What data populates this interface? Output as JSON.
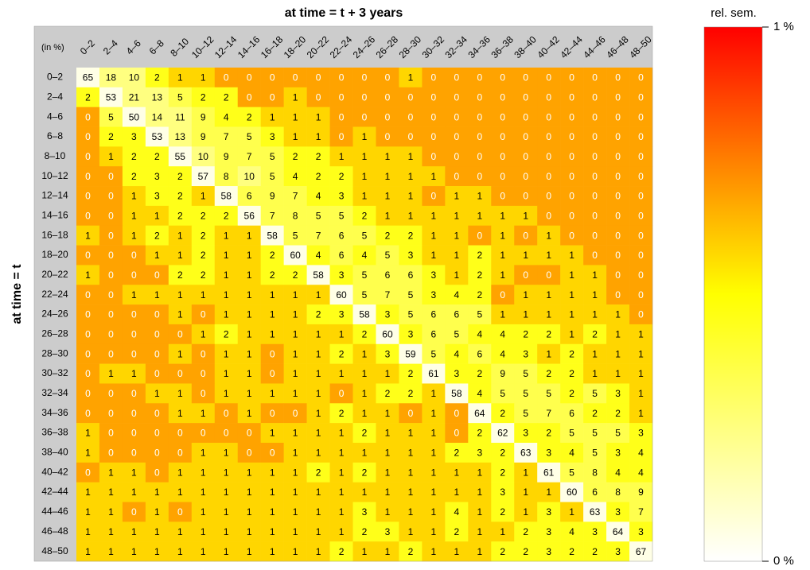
{
  "chart_data": {
    "type": "heatmap",
    "title": "at time = t + 3 years",
    "ylabel": "at time = t",
    "corner_label": "(in %)",
    "x_categories": [
      "0–2",
      "2–4",
      "4–6",
      "6–8",
      "8–10",
      "10–12",
      "12–14",
      "14–16",
      "16–18",
      "18–20",
      "20–22",
      "22–24",
      "24–26",
      "26–28",
      "28–30",
      "30–32",
      "32–34",
      "34–36",
      "36–38",
      "38–40",
      "40–42",
      "42–44",
      "44–46",
      "46–48",
      "48–50"
    ],
    "y_categories": [
      "0–2",
      "2–4",
      "4–6",
      "6–8",
      "8–10",
      "10–12",
      "12–14",
      "14–16",
      "16–18",
      "18–20",
      "20–22",
      "22–24",
      "24–26",
      "26–28",
      "28–30",
      "30–32",
      "32–34",
      "34–36",
      "36–38",
      "38–40",
      "40–42",
      "42–44",
      "44–46",
      "46–48",
      "48–50"
    ],
    "values": [
      [
        65,
        18,
        10,
        2,
        1,
        1,
        0,
        0,
        0,
        0,
        0,
        0,
        0,
        0,
        1,
        0,
        0,
        0,
        0,
        0,
        0,
        0,
        0,
        0,
        0
      ],
      [
        2,
        53,
        21,
        13,
        5,
        2,
        2,
        0,
        0,
        1,
        0,
        0,
        0,
        0,
        0,
        0,
        0,
        0,
        0,
        0,
        0,
        0,
        0,
        0,
        0
      ],
      [
        0,
        5,
        50,
        14,
        11,
        9,
        4,
        2,
        1,
        1,
        1,
        0,
        0,
        0,
        0,
        0,
        0,
        0,
        0,
        0,
        0,
        0,
        0,
        0,
        0
      ],
      [
        0,
        2,
        3,
        53,
        13,
        9,
        7,
        5,
        3,
        1,
        1,
        0,
        1,
        0,
        0,
        0,
        0,
        0,
        0,
        0,
        0,
        0,
        0,
        0,
        0
      ],
      [
        0,
        1,
        2,
        2,
        55,
        10,
        9,
        7,
        5,
        2,
        2,
        1,
        1,
        1,
        1,
        0,
        0,
        0,
        0,
        0,
        0,
        0,
        0,
        0,
        0
      ],
      [
        0,
        0,
        2,
        3,
        2,
        57,
        8,
        10,
        5,
        4,
        2,
        2,
        1,
        1,
        1,
        1,
        0,
        0,
        0,
        0,
        0,
        0,
        0,
        0,
        0
      ],
      [
        0,
        0,
        1,
        3,
        2,
        1,
        58,
        6,
        9,
        7,
        4,
        3,
        1,
        1,
        1,
        0,
        1,
        1,
        0,
        0,
        0,
        0,
        0,
        0,
        0
      ],
      [
        0,
        0,
        1,
        1,
        2,
        2,
        2,
        56,
        7,
        8,
        5,
        5,
        2,
        1,
        1,
        1,
        1,
        1,
        1,
        1,
        0,
        0,
        0,
        0,
        0
      ],
      [
        1,
        0,
        1,
        2,
        1,
        2,
        1,
        1,
        58,
        5,
        7,
        6,
        5,
        2,
        2,
        1,
        1,
        0,
        1,
        0,
        1,
        0,
        0,
        0,
        0
      ],
      [
        0,
        0,
        0,
        1,
        1,
        2,
        1,
        1,
        2,
        60,
        4,
        6,
        4,
        5,
        3,
        1,
        1,
        2,
        1,
        1,
        1,
        1,
        0,
        0,
        0
      ],
      [
        1,
        0,
        0,
        0,
        2,
        2,
        1,
        1,
        2,
        2,
        58,
        3,
        5,
        6,
        6,
        3,
        1,
        2,
        1,
        0,
        0,
        1,
        1,
        0,
        0
      ],
      [
        0,
        0,
        1,
        1,
        1,
        1,
        1,
        1,
        1,
        1,
        1,
        60,
        5,
        7,
        5,
        3,
        4,
        2,
        0,
        1,
        1,
        1,
        1,
        0,
        0
      ],
      [
        0,
        0,
        0,
        0,
        1,
        0,
        1,
        1,
        1,
        1,
        2,
        3,
        58,
        3,
        5,
        6,
        6,
        5,
        1,
        1,
        1,
        1,
        1,
        1,
        0
      ],
      [
        0,
        0,
        0,
        0,
        0,
        1,
        2,
        1,
        1,
        1,
        1,
        1,
        2,
        60,
        3,
        6,
        5,
        4,
        4,
        2,
        2,
        1,
        2,
        1,
        1
      ],
      [
        0,
        0,
        0,
        0,
        1,
        0,
        1,
        1,
        0,
        1,
        1,
        2,
        1,
        3,
        59,
        5,
        4,
        6,
        4,
        3,
        1,
        2,
        1,
        1,
        1
      ],
      [
        0,
        1,
        1,
        0,
        0,
        0,
        1,
        1,
        0,
        1,
        1,
        1,
        1,
        1,
        2,
        61,
        3,
        2,
        9,
        5,
        2,
        2,
        1,
        1,
        1
      ],
      [
        0,
        0,
        0,
        1,
        1,
        0,
        1,
        1,
        1,
        1,
        1,
        0,
        1,
        2,
        2,
        1,
        58,
        4,
        5,
        5,
        5,
        2,
        5,
        3,
        1
      ],
      [
        0,
        0,
        0,
        0,
        1,
        1,
        0,
        1,
        0,
        0,
        1,
        2,
        1,
        1,
        0,
        1,
        0,
        64,
        2,
        5,
        7,
        6,
        2,
        2,
        1
      ],
      [
        1,
        0,
        0,
        0,
        0,
        0,
        0,
        0,
        1,
        1,
        1,
        1,
        2,
        1,
        1,
        1,
        0,
        2,
        62,
        3,
        2,
        5,
        5,
        5,
        3
      ],
      [
        1,
        0,
        0,
        0,
        0,
        1,
        1,
        0,
        0,
        1,
        1,
        1,
        1,
        1,
        1,
        1,
        2,
        3,
        2,
        63,
        3,
        4,
        5,
        3,
        4
      ],
      [
        0,
        1,
        1,
        0,
        1,
        1,
        1,
        1,
        1,
        1,
        2,
        1,
        2,
        1,
        1,
        1,
        1,
        1,
        2,
        1,
        61,
        5,
        8,
        4,
        4
      ],
      [
        1,
        1,
        1,
        1,
        1,
        1,
        1,
        1,
        1,
        1,
        1,
        1,
        1,
        1,
        1,
        1,
        1,
        1,
        3,
        1,
        1,
        60,
        6,
        8,
        9
      ],
      [
        1,
        1,
        0,
        1,
        0,
        1,
        1,
        1,
        1,
        1,
        1,
        1,
        3,
        1,
        1,
        1,
        4,
        1,
        2,
        1,
        3,
        1,
        63,
        3,
        7
      ],
      [
        1,
        1,
        1,
        1,
        1,
        1,
        1,
        1,
        1,
        1,
        1,
        1,
        2,
        3,
        1,
        1,
        2,
        1,
        1,
        2,
        3,
        4,
        3,
        64,
        3
      ],
      [
        1,
        1,
        1,
        1,
        1,
        1,
        1,
        1,
        1,
        1,
        1,
        2,
        1,
        1,
        2,
        1,
        1,
        1,
        2,
        2,
        3,
        2,
        2,
        3,
        67
      ]
    ],
    "sem": [
      [
        0.05,
        0.25,
        0.25,
        0.45,
        0.58,
        0.58,
        0.68,
        0.68,
        0.68,
        0.68,
        0.68,
        0.68,
        0.68,
        0.68,
        0.58,
        0.68,
        0.68,
        0.68,
        0.68,
        0.68,
        0.68,
        0.68,
        0.68,
        0.68,
        0.68
      ],
      [
        0.45,
        0.05,
        0.25,
        0.25,
        0.35,
        0.45,
        0.45,
        0.68,
        0.68,
        0.58,
        0.68,
        0.68,
        0.68,
        0.68,
        0.68,
        0.68,
        0.68,
        0.68,
        0.68,
        0.68,
        0.68,
        0.68,
        0.68,
        0.68,
        0.68
      ],
      [
        0.68,
        0.35,
        0.05,
        0.25,
        0.25,
        0.35,
        0.45,
        0.45,
        0.58,
        0.58,
        0.58,
        0.68,
        0.68,
        0.68,
        0.68,
        0.68,
        0.68,
        0.68,
        0.68,
        0.68,
        0.68,
        0.68,
        0.68,
        0.68,
        0.68
      ],
      [
        0.68,
        0.45,
        0.45,
        0.05,
        0.25,
        0.35,
        0.35,
        0.35,
        0.45,
        0.58,
        0.58,
        0.68,
        0.58,
        0.68,
        0.68,
        0.68,
        0.68,
        0.68,
        0.68,
        0.68,
        0.68,
        0.68,
        0.68,
        0.68,
        0.68
      ],
      [
        0.68,
        0.58,
        0.45,
        0.45,
        0.05,
        0.25,
        0.35,
        0.35,
        0.35,
        0.45,
        0.45,
        0.58,
        0.58,
        0.58,
        0.58,
        0.68,
        0.68,
        0.68,
        0.68,
        0.68,
        0.68,
        0.68,
        0.68,
        0.68,
        0.68
      ],
      [
        0.68,
        0.68,
        0.45,
        0.45,
        0.45,
        0.05,
        0.35,
        0.25,
        0.35,
        0.45,
        0.45,
        0.45,
        0.58,
        0.58,
        0.58,
        0.58,
        0.68,
        0.68,
        0.68,
        0.68,
        0.68,
        0.68,
        0.68,
        0.68,
        0.68
      ],
      [
        0.68,
        0.68,
        0.58,
        0.45,
        0.45,
        0.58,
        0.05,
        0.35,
        0.35,
        0.35,
        0.45,
        0.45,
        0.58,
        0.58,
        0.58,
        0.68,
        0.58,
        0.58,
        0.68,
        0.68,
        0.68,
        0.68,
        0.68,
        0.68,
        0.68
      ],
      [
        0.68,
        0.68,
        0.58,
        0.58,
        0.45,
        0.45,
        0.45,
        0.05,
        0.35,
        0.35,
        0.35,
        0.35,
        0.45,
        0.58,
        0.58,
        0.58,
        0.58,
        0.58,
        0.58,
        0.58,
        0.68,
        0.68,
        0.68,
        0.68,
        0.68
      ],
      [
        0.58,
        0.68,
        0.58,
        0.45,
        0.58,
        0.45,
        0.58,
        0.58,
        0.05,
        0.35,
        0.35,
        0.35,
        0.35,
        0.45,
        0.45,
        0.58,
        0.58,
        0.68,
        0.58,
        0.68,
        0.58,
        0.68,
        0.68,
        0.68,
        0.68
      ],
      [
        0.68,
        0.68,
        0.68,
        0.58,
        0.58,
        0.45,
        0.58,
        0.58,
        0.45,
        0.05,
        0.45,
        0.35,
        0.45,
        0.35,
        0.45,
        0.58,
        0.58,
        0.45,
        0.58,
        0.58,
        0.58,
        0.58,
        0.68,
        0.68,
        0.68
      ],
      [
        0.58,
        0.68,
        0.68,
        0.68,
        0.45,
        0.45,
        0.58,
        0.58,
        0.45,
        0.45,
        0.05,
        0.45,
        0.35,
        0.35,
        0.35,
        0.45,
        0.58,
        0.45,
        0.58,
        0.68,
        0.68,
        0.58,
        0.58,
        0.68,
        0.68
      ],
      [
        0.68,
        0.68,
        0.58,
        0.58,
        0.58,
        0.58,
        0.58,
        0.58,
        0.58,
        0.58,
        0.58,
        0.05,
        0.35,
        0.35,
        0.35,
        0.45,
        0.45,
        0.45,
        0.68,
        0.58,
        0.58,
        0.58,
        0.58,
        0.68,
        0.68
      ],
      [
        0.68,
        0.68,
        0.68,
        0.68,
        0.58,
        0.68,
        0.58,
        0.58,
        0.58,
        0.58,
        0.45,
        0.45,
        0.05,
        0.45,
        0.35,
        0.35,
        0.35,
        0.35,
        0.58,
        0.58,
        0.58,
        0.58,
        0.58,
        0.58,
        0.68
      ],
      [
        0.68,
        0.68,
        0.68,
        0.68,
        0.68,
        0.58,
        0.45,
        0.58,
        0.58,
        0.58,
        0.58,
        0.58,
        0.45,
        0.05,
        0.45,
        0.35,
        0.35,
        0.45,
        0.45,
        0.45,
        0.45,
        0.58,
        0.45,
        0.58,
        0.58
      ],
      [
        0.68,
        0.68,
        0.68,
        0.68,
        0.58,
        0.68,
        0.58,
        0.58,
        0.68,
        0.58,
        0.58,
        0.45,
        0.58,
        0.45,
        0.05,
        0.35,
        0.45,
        0.35,
        0.45,
        0.45,
        0.58,
        0.45,
        0.58,
        0.58,
        0.58
      ],
      [
        0.68,
        0.58,
        0.58,
        0.68,
        0.68,
        0.68,
        0.58,
        0.58,
        0.68,
        0.58,
        0.58,
        0.58,
        0.58,
        0.58,
        0.45,
        0.05,
        0.45,
        0.45,
        0.35,
        0.35,
        0.45,
        0.45,
        0.58,
        0.58,
        0.58
      ],
      [
        0.68,
        0.68,
        0.68,
        0.58,
        0.58,
        0.68,
        0.58,
        0.58,
        0.58,
        0.58,
        0.58,
        0.68,
        0.58,
        0.45,
        0.45,
        0.58,
        0.05,
        0.45,
        0.35,
        0.35,
        0.35,
        0.45,
        0.35,
        0.45,
        0.58
      ],
      [
        0.68,
        0.68,
        0.68,
        0.68,
        0.58,
        0.58,
        0.68,
        0.58,
        0.68,
        0.68,
        0.58,
        0.45,
        0.58,
        0.58,
        0.68,
        0.58,
        0.68,
        0.05,
        0.45,
        0.35,
        0.35,
        0.35,
        0.45,
        0.45,
        0.58
      ],
      [
        0.58,
        0.68,
        0.68,
        0.68,
        0.68,
        0.68,
        0.68,
        0.68,
        0.58,
        0.58,
        0.58,
        0.58,
        0.45,
        0.58,
        0.58,
        0.58,
        0.68,
        0.45,
        0.05,
        0.45,
        0.45,
        0.35,
        0.35,
        0.35,
        0.45
      ],
      [
        0.58,
        0.68,
        0.68,
        0.68,
        0.68,
        0.58,
        0.58,
        0.68,
        0.68,
        0.58,
        0.58,
        0.58,
        0.58,
        0.58,
        0.58,
        0.58,
        0.45,
        0.45,
        0.45,
        0.05,
        0.45,
        0.45,
        0.35,
        0.45,
        0.45
      ],
      [
        0.68,
        0.58,
        0.58,
        0.68,
        0.58,
        0.58,
        0.58,
        0.58,
        0.58,
        0.58,
        0.45,
        0.58,
        0.45,
        0.58,
        0.58,
        0.58,
        0.58,
        0.58,
        0.45,
        0.58,
        0.05,
        0.35,
        0.35,
        0.45,
        0.45
      ],
      [
        0.58,
        0.58,
        0.58,
        0.58,
        0.58,
        0.58,
        0.58,
        0.58,
        0.58,
        0.58,
        0.58,
        0.58,
        0.58,
        0.58,
        0.58,
        0.58,
        0.58,
        0.58,
        0.45,
        0.58,
        0.58,
        0.05,
        0.35,
        0.35,
        0.35
      ],
      [
        0.58,
        0.58,
        0.68,
        0.58,
        0.68,
        0.58,
        0.58,
        0.58,
        0.58,
        0.58,
        0.58,
        0.58,
        0.45,
        0.58,
        0.58,
        0.58,
        0.45,
        0.58,
        0.45,
        0.58,
        0.45,
        0.58,
        0.05,
        0.45,
        0.35
      ],
      [
        0.58,
        0.58,
        0.58,
        0.58,
        0.58,
        0.58,
        0.58,
        0.58,
        0.58,
        0.58,
        0.58,
        0.58,
        0.45,
        0.45,
        0.58,
        0.58,
        0.45,
        0.58,
        0.58,
        0.45,
        0.45,
        0.45,
        0.45,
        0.05,
        0.45
      ],
      [
        0.58,
        0.58,
        0.58,
        0.58,
        0.58,
        0.58,
        0.58,
        0.58,
        0.58,
        0.58,
        0.58,
        0.45,
        0.58,
        0.58,
        0.45,
        0.58,
        0.58,
        0.58,
        0.45,
        0.45,
        0.45,
        0.45,
        0.45,
        0.45,
        0.05
      ]
    ],
    "colorbar": {
      "label": "rel. sem.",
      "lim": [
        0,
        1
      ],
      "ticks": [
        {
          "value": 0,
          "label": "0 %"
        },
        {
          "value": 1,
          "label": "1 %"
        }
      ]
    }
  }
}
